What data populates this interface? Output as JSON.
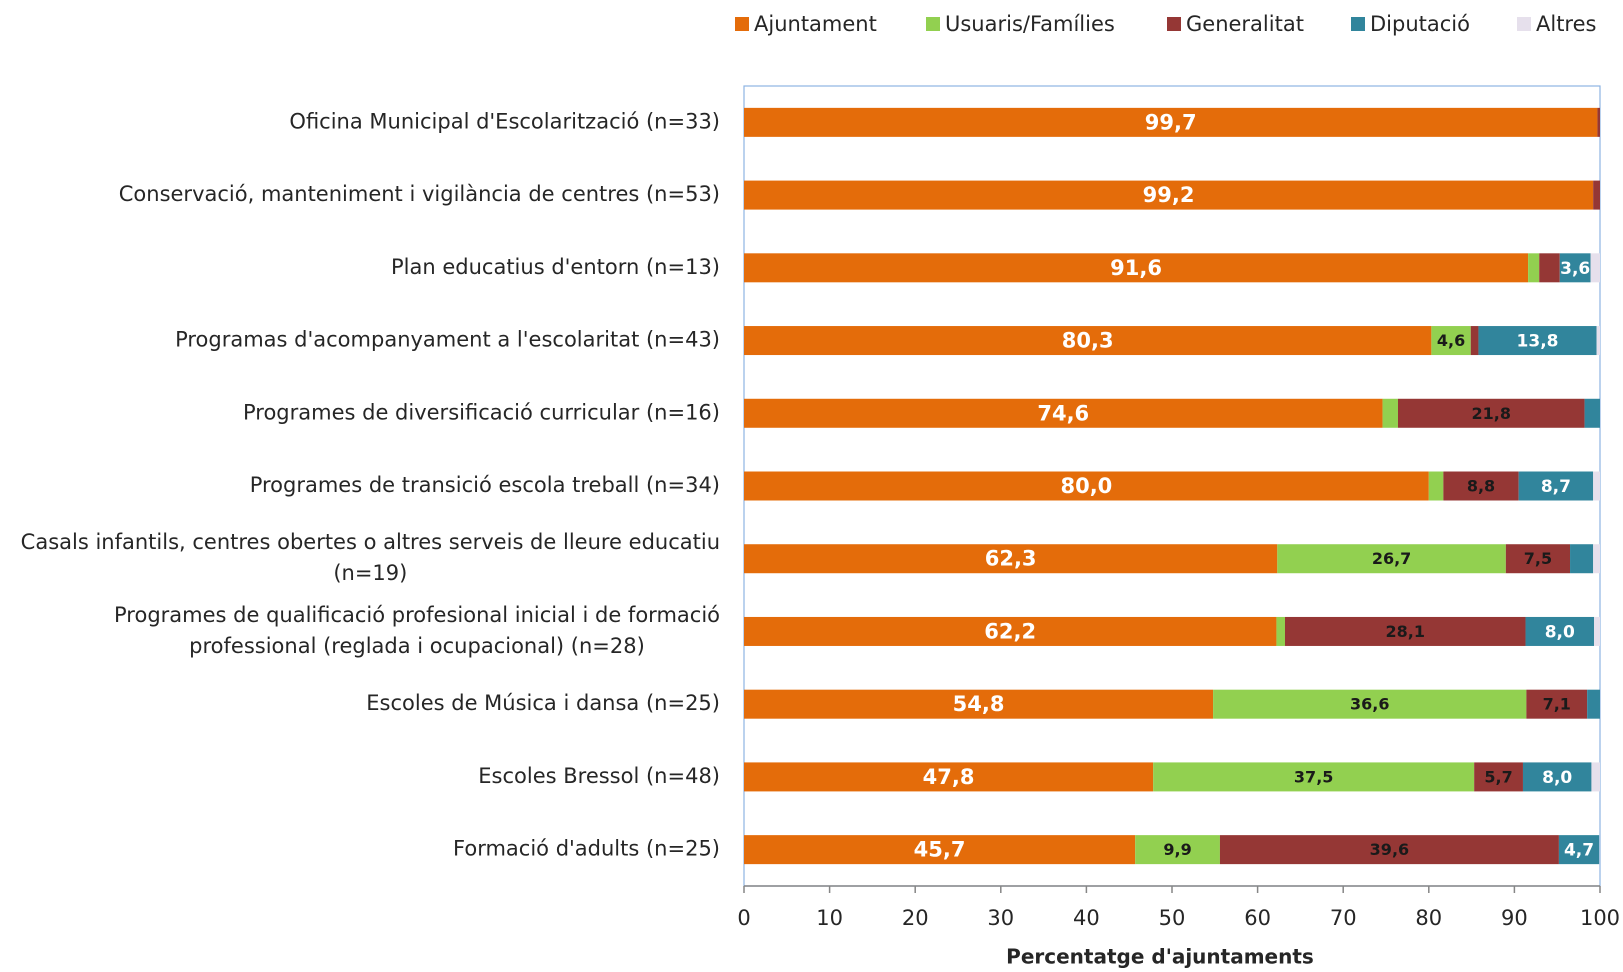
{
  "chart_data": {
    "type": "stacked-bar-horizontal",
    "x_label": "Percentatge d'ajuntaments",
    "categories": [
      "Oficina Municipal d'Escolarització (n=33)",
      "Conservació, manteniment i vigilància de centres (n=53)",
      "Plan educatius d'entorn (n=13)",
      "Programas d'acompanyament a l'escolaritat (n=43)",
      "Programes de diversificació curricular (n=16)",
      "Programes de transició escola treball (n=34)",
      [
        "Casals infantils, centres obertes o altres serveis de lleure educatiu",
        "(n=19)"
      ],
      [
        "Programes de qualificació profesional inicial i de formació",
        "professional (reglada i ocupacional) (n=28)"
      ],
      "Escoles de Música i dansa (n=25)",
      "Escoles Bressol (n=48)",
      "Formació d'adults (n=25)"
    ],
    "series": [
      {
        "name": "Ajuntament",
        "color": "#e46c0a",
        "values": [
          99.7,
          99.2,
          91.6,
          80.3,
          74.6,
          80.0,
          62.3,
          62.2,
          54.8,
          47.8,
          45.7
        ],
        "value_labels": [
          "99,7",
          "99,2",
          "91,6",
          "80,3",
          "74,6",
          "80,0",
          "62,3",
          "62,2",
          "54,8",
          "47,8",
          "45,7"
        ]
      },
      {
        "name": "Usuaris/Famílies",
        "color": "#92d050",
        "values": [
          0,
          0,
          1.3,
          4.6,
          1.8,
          1.7,
          26.7,
          1.0,
          36.6,
          37.5,
          9.9
        ],
        "value_labels": [
          null,
          null,
          null,
          "4,6",
          null,
          null,
          "26,7",
          null,
          "36,6",
          "37,5",
          "9,9"
        ]
      },
      {
        "name": "Generalitat",
        "color": "#953735",
        "values": [
          0.3,
          0.8,
          2.4,
          0.9,
          21.8,
          8.8,
          7.5,
          28.1,
          7.1,
          5.7,
          39.6
        ],
        "value_labels": [
          null,
          null,
          null,
          null,
          "21,8",
          "8,8",
          "7,5",
          "28,1",
          "7,1",
          "5,7",
          "39,6"
        ]
      },
      {
        "name": "Diputació",
        "color": "#31859c",
        "values": [
          0,
          0,
          3.6,
          13.8,
          1.8,
          8.7,
          2.7,
          8.0,
          1.5,
          8.0,
          4.7
        ],
        "value_labels": [
          null,
          null,
          "3,6",
          "13,8",
          null,
          "8,7",
          null,
          "8,0",
          null,
          "8,0",
          "4,7"
        ]
      },
      {
        "name": "Altres",
        "color": "#e6e0ec",
        "values": [
          0,
          0,
          1.1,
          0.4,
          0,
          0.8,
          0.8,
          0.7,
          0,
          1.0,
          0
        ],
        "value_labels": [
          null,
          null,
          null,
          null,
          null,
          null,
          null,
          null,
          null,
          null,
          null
        ]
      }
    ],
    "xlim": [
      0,
      100
    ],
    "xticks": [
      0,
      10,
      20,
      30,
      40,
      50,
      60,
      70,
      80,
      90,
      100
    ],
    "legend": "top-right"
  }
}
